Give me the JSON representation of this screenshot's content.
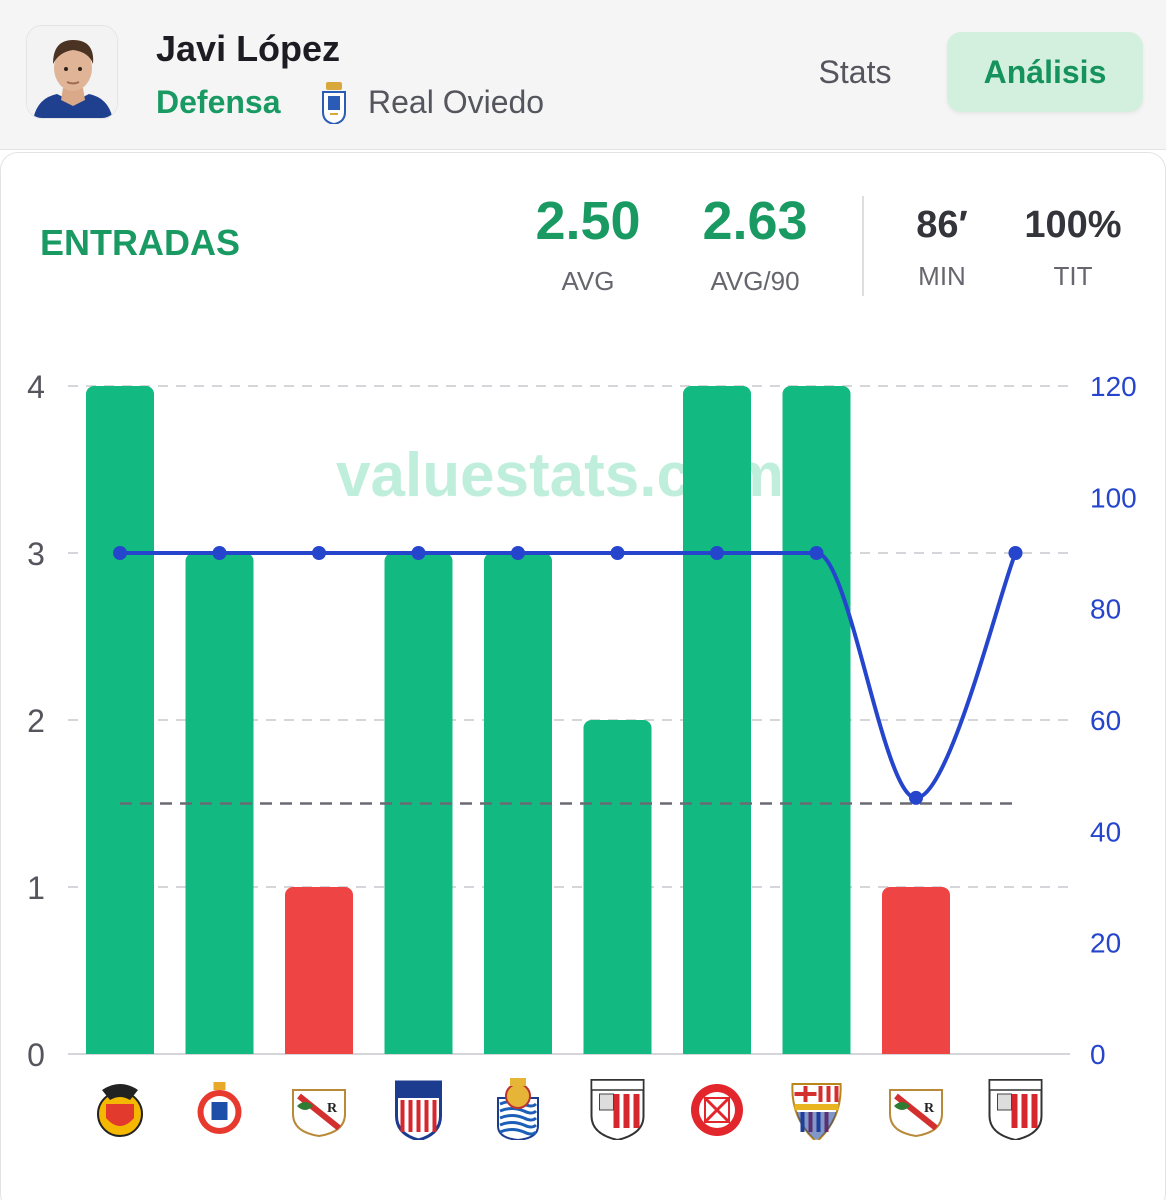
{
  "player": {
    "name": "Javi López",
    "position": "Defensa",
    "team": "Real Oviedo"
  },
  "tabs": [
    {
      "label": "Stats",
      "active": false
    },
    {
      "label": "Análisis",
      "active": true
    }
  ],
  "metric": {
    "title": "ENTRADAS",
    "avg": "2.50",
    "avg_label": "AVG",
    "avg90": "2.63",
    "avg90_label": "AVG/90",
    "min": "86′",
    "min_label": "MIN",
    "tit": "100%",
    "tit_label": "TIT"
  },
  "watermark": "valuestats.com",
  "colors": {
    "accent_green": "#1a9a63",
    "bar_green": "#12b981",
    "bar_red": "#ef4444",
    "line_blue": "#2546cc",
    "tab_active_bg": "#d3f0df"
  },
  "chart_data": {
    "type": "bar",
    "categories": [
      "Valencia CF",
      "RCD Espanyol",
      "Rayo Vallecano",
      "Atlético de Madrid",
      "Real Sociedad",
      "Athletic Club",
      "Girona FC",
      "FC Barcelona",
      "Rayo Vallecano",
      "Athletic Club"
    ],
    "category_icons": [
      "valencia-crest-icon",
      "espanyol-crest-icon",
      "rayo-vallecano-crest-icon",
      "atletico-madrid-crest-icon",
      "real-sociedad-crest-icon",
      "athletic-club-crest-icon",
      "girona-crest-icon",
      "barcelona-crest-icon",
      "rayo-vallecano-crest-icon",
      "athletic-club-crest-icon"
    ],
    "series": [
      {
        "type": "bar",
        "axis": "left",
        "values": [
          4,
          3,
          1,
          3,
          3,
          2,
          4,
          4,
          1,
          0
        ]
      },
      {
        "type": "line",
        "axis": "right",
        "values": [
          90,
          90,
          90,
          90,
          90,
          90,
          90,
          90,
          46,
          90
        ]
      }
    ],
    "bar_threshold": 1.5,
    "threshold_line": 1.5,
    "ylim_left": [
      0,
      4
    ],
    "yticks_left": [
      0,
      1,
      2,
      3,
      4
    ],
    "ylim_right": [
      0,
      120
    ],
    "yticks_right": [
      0,
      20,
      40,
      60,
      80,
      100,
      120
    ],
    "grid": true
  }
}
